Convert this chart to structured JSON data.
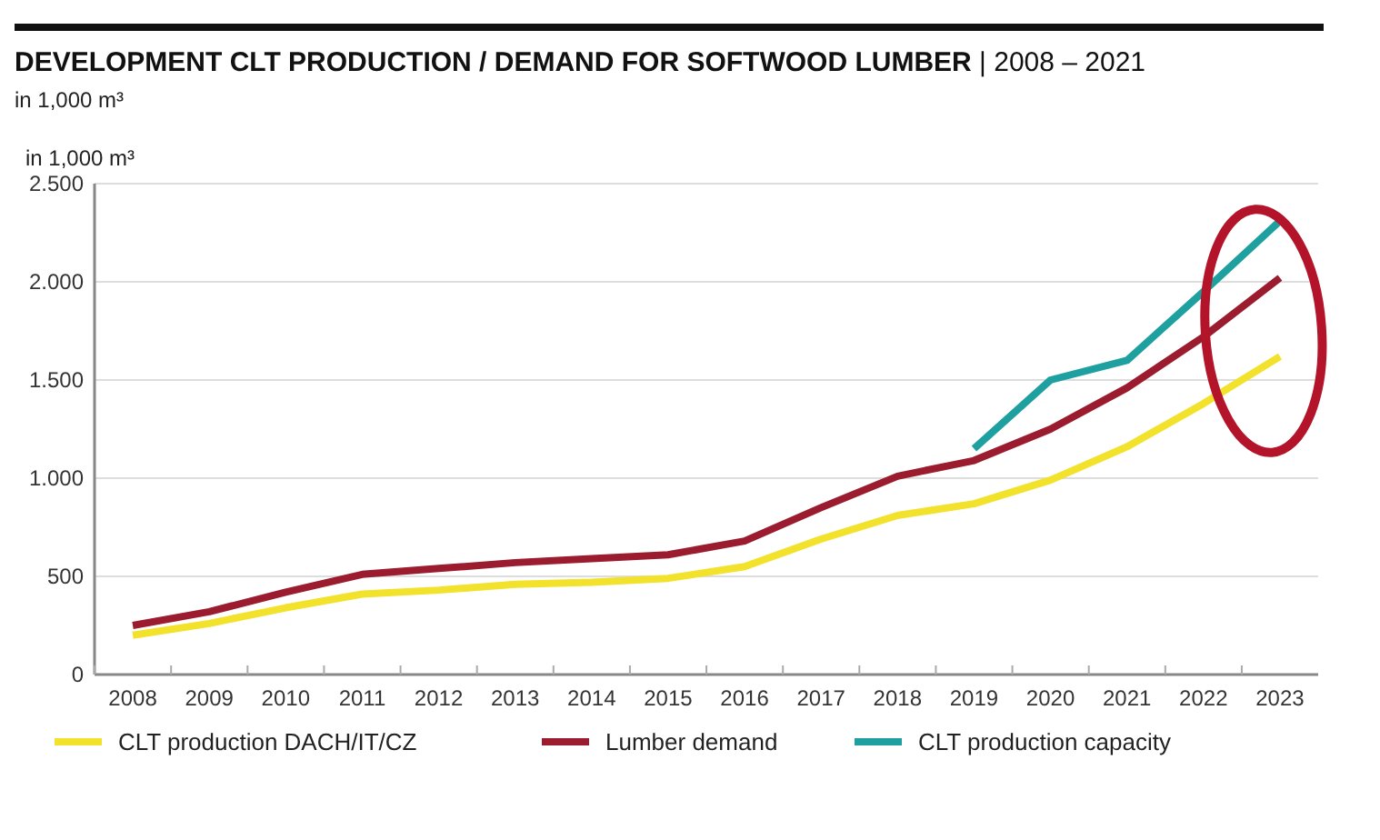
{
  "chart_data": {
    "type": "line",
    "title": "DEVELOPMENT CLT PRODUCTION / DEMAND FOR SOFTWOOD LUMBER | 2008 – 2021",
    "subtitle": "in 1,000 m³",
    "ylabel": "in 1,000 m³",
    "categories": [
      "2008",
      "2009",
      "2010",
      "2011",
      "2012",
      "2013",
      "2014",
      "2015",
      "2016",
      "2017",
      "2018",
      "2019",
      "2020",
      "2021",
      "2022",
      "2023"
    ],
    "series": [
      {
        "name": "CLT production DACH/IT/CZ",
        "color": "#f2e22c",
        "values": [
          200,
          260,
          340,
          410,
          430,
          460,
          470,
          490,
          550,
          690,
          810,
          870,
          990,
          1160,
          1380,
          1620
        ]
      },
      {
        "name": "Lumber demand",
        "color": "#9b1c2e",
        "values": [
          250,
          320,
          420,
          510,
          540,
          570,
          590,
          610,
          680,
          850,
          1010,
          1090,
          1250,
          1460,
          1720,
          2020
        ]
      },
      {
        "name": "CLT production capacity",
        "color": "#1fa0a0",
        "values": [
          null,
          null,
          null,
          null,
          null,
          null,
          null,
          null,
          null,
          null,
          null,
          1150,
          1500,
          1600,
          1950,
          2310
        ]
      }
    ],
    "ylim": [
      0,
      2500
    ],
    "yticks": [
      0,
      {
        "value": 500,
        "label": "500"
      },
      {
        "value": 1000,
        "label": "1.000"
      },
      {
        "value": 1500,
        "label": "1.500"
      },
      {
        "value": 2000,
        "label": "2.000"
      },
      {
        "value": 2500,
        "label": "2.500"
      }
    ],
    "grid": "y",
    "legend": "bottom",
    "line_style": "solid"
  }
}
